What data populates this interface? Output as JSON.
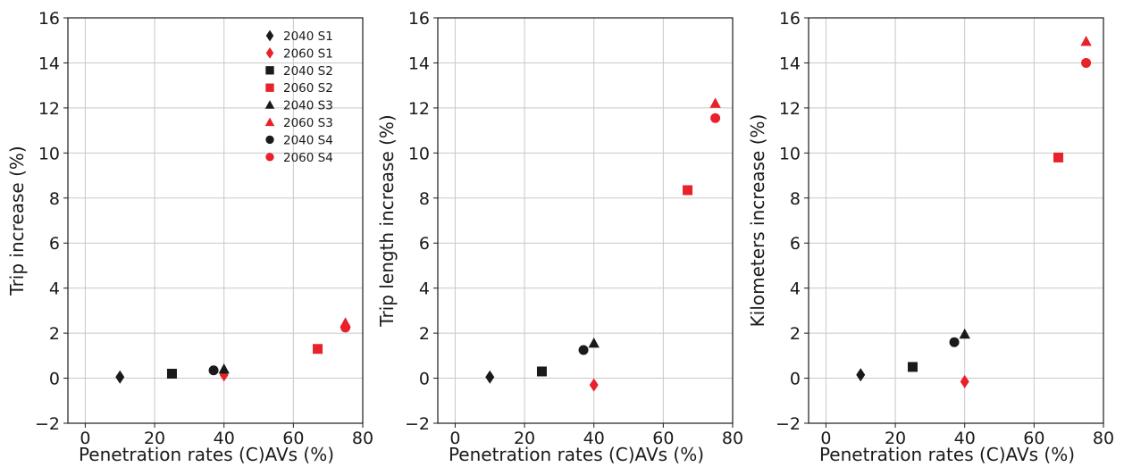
{
  "colors": {
    "2040": "#1a1a1a",
    "2060": "#e8212b",
    "grid": "#c8c8c8",
    "axis": "#1a1a1a"
  },
  "legend": {
    "position": "top-right of first panel",
    "entries": [
      {
        "label": "2040 S1",
        "marker": "diamond",
        "color": "#1a1a1a"
      },
      {
        "label": "2060 S1",
        "marker": "diamond",
        "color": "#e8212b"
      },
      {
        "label": "2040 S2",
        "marker": "square",
        "color": "#1a1a1a"
      },
      {
        "label": "2060 S2",
        "marker": "square",
        "color": "#e8212b"
      },
      {
        "label": "2040 S3",
        "marker": "triangle",
        "color": "#1a1a1a"
      },
      {
        "label": "2060 S3",
        "marker": "triangle",
        "color": "#e8212b"
      },
      {
        "label": "2040 S4",
        "marker": "circle",
        "color": "#1a1a1a"
      },
      {
        "label": "2060 S4",
        "marker": "circle",
        "color": "#e8212b"
      }
    ]
  },
  "chart_data": [
    {
      "type": "scatter",
      "title": "",
      "xlabel": "Penetration rates (C)AVs (%)",
      "ylabel": "Trip increase (%)",
      "xlim": [
        -5,
        80
      ],
      "ylim": [
        -2,
        16
      ],
      "xticks": [
        0,
        20,
        40,
        60,
        80
      ],
      "yticks": [
        -2,
        0,
        2,
        4,
        6,
        8,
        10,
        12,
        14,
        16
      ],
      "grid": true,
      "series": [
        {
          "name": "2040 S1",
          "marker": "diamond",
          "color": "#1a1a1a",
          "x": [
            10
          ],
          "y": [
            0.05
          ]
        },
        {
          "name": "2060 S1",
          "marker": "diamond",
          "color": "#e8212b",
          "x": [
            40
          ],
          "y": [
            0.15
          ]
        },
        {
          "name": "2040 S2",
          "marker": "square",
          "color": "#1a1a1a",
          "x": [
            25
          ],
          "y": [
            0.2
          ]
        },
        {
          "name": "2060 S2",
          "marker": "square",
          "color": "#e8212b",
          "x": [
            67
          ],
          "y": [
            1.3
          ]
        },
        {
          "name": "2040 S3",
          "marker": "triangle",
          "color": "#1a1a1a",
          "x": [
            40
          ],
          "y": [
            0.4
          ]
        },
        {
          "name": "2060 S3",
          "marker": "triangle",
          "color": "#e8212b",
          "x": [
            75
          ],
          "y": [
            2.45
          ]
        },
        {
          "name": "2040 S4",
          "marker": "circle",
          "color": "#1a1a1a",
          "x": [
            37
          ],
          "y": [
            0.35
          ]
        },
        {
          "name": "2060 S4",
          "marker": "circle",
          "color": "#e8212b",
          "x": [
            75
          ],
          "y": [
            2.25
          ]
        }
      ]
    },
    {
      "type": "scatter",
      "title": "",
      "xlabel": "Penetration rates (C)AVs (%)",
      "ylabel": "Trip length increase (%)",
      "xlim": [
        -5,
        80
      ],
      "ylim": [
        -2,
        16
      ],
      "xticks": [
        0,
        20,
        40,
        60,
        80
      ],
      "yticks": [
        -2,
        0,
        2,
        4,
        6,
        8,
        10,
        12,
        14,
        16
      ],
      "grid": true,
      "series": [
        {
          "name": "2040 S1",
          "marker": "diamond",
          "color": "#1a1a1a",
          "x": [
            10
          ],
          "y": [
            0.05
          ]
        },
        {
          "name": "2060 S1",
          "marker": "diamond",
          "color": "#e8212b",
          "x": [
            40
          ],
          "y": [
            -0.3
          ]
        },
        {
          "name": "2040 S2",
          "marker": "square",
          "color": "#1a1a1a",
          "x": [
            25
          ],
          "y": [
            0.3
          ]
        },
        {
          "name": "2060 S2",
          "marker": "square",
          "color": "#e8212b",
          "x": [
            67
          ],
          "y": [
            8.35
          ]
        },
        {
          "name": "2040 S3",
          "marker": "triangle",
          "color": "#1a1a1a",
          "x": [
            40
          ],
          "y": [
            1.55
          ]
        },
        {
          "name": "2060 S3",
          "marker": "triangle",
          "color": "#e8212b",
          "x": [
            75
          ],
          "y": [
            12.2
          ]
        },
        {
          "name": "2040 S4",
          "marker": "circle",
          "color": "#1a1a1a",
          "x": [
            37
          ],
          "y": [
            1.25
          ]
        },
        {
          "name": "2060 S4",
          "marker": "circle",
          "color": "#e8212b",
          "x": [
            75
          ],
          "y": [
            11.55
          ]
        }
      ]
    },
    {
      "type": "scatter",
      "title": "",
      "xlabel": "Penetration rates (C)AVs (%)",
      "ylabel": "Kilometers increase (%)",
      "xlim": [
        -5,
        80
      ],
      "ylim": [
        -2,
        16
      ],
      "xticks": [
        0,
        20,
        40,
        60,
        80
      ],
      "yticks": [
        -2,
        0,
        2,
        4,
        6,
        8,
        10,
        12,
        14,
        16
      ],
      "grid": true,
      "series": [
        {
          "name": "2040 S1",
          "marker": "diamond",
          "color": "#1a1a1a",
          "x": [
            10
          ],
          "y": [
            0.15
          ]
        },
        {
          "name": "2060 S1",
          "marker": "diamond",
          "color": "#e8212b",
          "x": [
            40
          ],
          "y": [
            -0.15
          ]
        },
        {
          "name": "2040 S2",
          "marker": "square",
          "color": "#1a1a1a",
          "x": [
            25
          ],
          "y": [
            0.5
          ]
        },
        {
          "name": "2060 S2",
          "marker": "square",
          "color": "#e8212b",
          "x": [
            67
          ],
          "y": [
            9.8
          ]
        },
        {
          "name": "2040 S3",
          "marker": "triangle",
          "color": "#1a1a1a",
          "x": [
            40
          ],
          "y": [
            1.95
          ]
        },
        {
          "name": "2060 S3",
          "marker": "triangle",
          "color": "#e8212b",
          "x": [
            75
          ],
          "y": [
            14.95
          ]
        },
        {
          "name": "2040 S4",
          "marker": "circle",
          "color": "#1a1a1a",
          "x": [
            37
          ],
          "y": [
            1.6
          ]
        },
        {
          "name": "2060 S4",
          "marker": "circle",
          "color": "#e8212b",
          "x": [
            75
          ],
          "y": [
            14.0
          ]
        }
      ]
    }
  ]
}
